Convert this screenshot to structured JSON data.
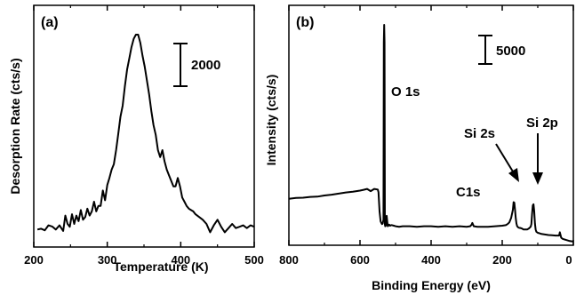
{
  "chart_data": [
    {
      "type": "line",
      "panel_label": "(a)",
      "xlabel": "Temperature (K)",
      "ylabel": "Desorption Rate (cts/s)",
      "xlim": [
        200,
        500
      ],
      "xticks": [
        "200",
        "300",
        "400",
        "500"
      ],
      "yticks": false,
      "scale_bar": {
        "label": "2000",
        "value": 2000
      },
      "series": [
        {
          "x": [
            205,
            210,
            215,
            220,
            225,
            230,
            235,
            240,
            243,
            246,
            249,
            252,
            255,
            258,
            261,
            264,
            267,
            270,
            273,
            276,
            279,
            282,
            285,
            288,
            291,
            294,
            297,
            300,
            303,
            306,
            309,
            312,
            315,
            318,
            321,
            324,
            327,
            330,
            333,
            336,
            339,
            342,
            345,
            348,
            351,
            354,
            357,
            360,
            363,
            366,
            369,
            372,
            375,
            378,
            381,
            384,
            387,
            390,
            393,
            396,
            399,
            402,
            405,
            408,
            411,
            414,
            417,
            420,
            425,
            430,
            435,
            440,
            445,
            450,
            455,
            460,
            465,
            470,
            475,
            480,
            485,
            490,
            495,
            500
          ],
          "y": [
            1150,
            1180,
            1120,
            1300,
            1260,
            1150,
            1300,
            1100,
            1650,
            1350,
            1250,
            1700,
            1350,
            1650,
            1450,
            1850,
            1500,
            1600,
            1900,
            1650,
            1800,
            2150,
            1800,
            2000,
            2000,
            2550,
            2200,
            2750,
            3000,
            3300,
            3500,
            4000,
            4600,
            5200,
            5600,
            6300,
            6900,
            7300,
            7700,
            8000,
            8150,
            8150,
            7850,
            7400,
            7000,
            6500,
            6000,
            5400,
            4900,
            4550,
            4000,
            3750,
            4000,
            3600,
            3300,
            3100,
            2900,
            2700,
            2700,
            3000,
            2700,
            2300,
            2150,
            2000,
            1900,
            1850,
            1800,
            1700,
            1600,
            1500,
            1350,
            1050,
            1300,
            1500,
            1250,
            1050,
            1200,
            1350,
            1200,
            1250,
            1300,
            1200,
            1300,
            1250
          ]
        }
      ]
    },
    {
      "type": "line",
      "panel_label": "(b)",
      "xlabel": "Binding Energy (eV)",
      "ylabel": "Intensity (cts/s)",
      "xlim": [
        800,
        0
      ],
      "xticks": [
        "800",
        "600",
        "400",
        "200",
        "0"
      ],
      "yticks": false,
      "scale_bar": {
        "label": "5000",
        "value": 5000
      },
      "annotations": [
        "O 1s",
        "Si 2s",
        "Si 2p",
        "C1s"
      ],
      "series": [
        {
          "x": [
            800,
            780,
            760,
            740,
            720,
            700,
            680,
            660,
            640,
            620,
            600,
            590,
            580,
            570,
            560,
            550,
            548,
            545,
            542,
            540,
            538,
            536,
            534,
            533,
            532,
            531,
            530,
            529,
            528,
            527,
            525,
            522,
            520,
            518,
            515,
            512,
            510,
            505,
            500,
            490,
            480,
            460,
            440,
            420,
            400,
            380,
            360,
            340,
            320,
            300,
            290,
            286,
            284,
            282,
            280,
            270,
            260,
            240,
            220,
            200,
            190,
            185,
            180,
            175,
            170,
            168,
            166,
            164,
            162,
            160,
            158,
            155,
            152,
            150,
            145,
            140,
            135,
            130,
            125,
            120,
            118,
            116,
            114,
            112,
            110,
            108,
            106,
            104,
            100,
            95,
            90,
            80,
            70,
            60,
            50,
            40,
            38,
            36,
            34,
            30,
            20,
            10,
            0
          ],
          "y": [
            8300,
            8450,
            8500,
            8650,
            8700,
            8900,
            9050,
            9250,
            9450,
            9600,
            9800,
            9950,
            10100,
            9700,
            10100,
            10000,
            9500,
            6000,
            4200,
            3900,
            3700,
            3800,
            4500,
            36800,
            40000,
            36800,
            3600,
            3300,
            3350,
            3500,
            5200,
            3300,
            3400,
            3600,
            3400,
            3500,
            3500,
            3400,
            3300,
            3200,
            3300,
            3300,
            3200,
            3300,
            3300,
            3200,
            3300,
            3200,
            3300,
            3200,
            3300,
            3600,
            3900,
            3600,
            3300,
            3200,
            3200,
            3200,
            3300,
            3400,
            3500,
            3700,
            4000,
            4800,
            6300,
            7700,
            7600,
            6300,
            4800,
            3800,
            3300,
            3100,
            3000,
            3000,
            2900,
            2700,
            2700,
            2700,
            2900,
            3200,
            3700,
            5600,
            7100,
            7300,
            6000,
            3800,
            2700,
            2300,
            2100,
            2000,
            1900,
            1800,
            1700,
            1650,
            1600,
            1600,
            2200,
            1700,
            1200,
            1000,
            800,
            600,
            500
          ]
        }
      ]
    }
  ]
}
